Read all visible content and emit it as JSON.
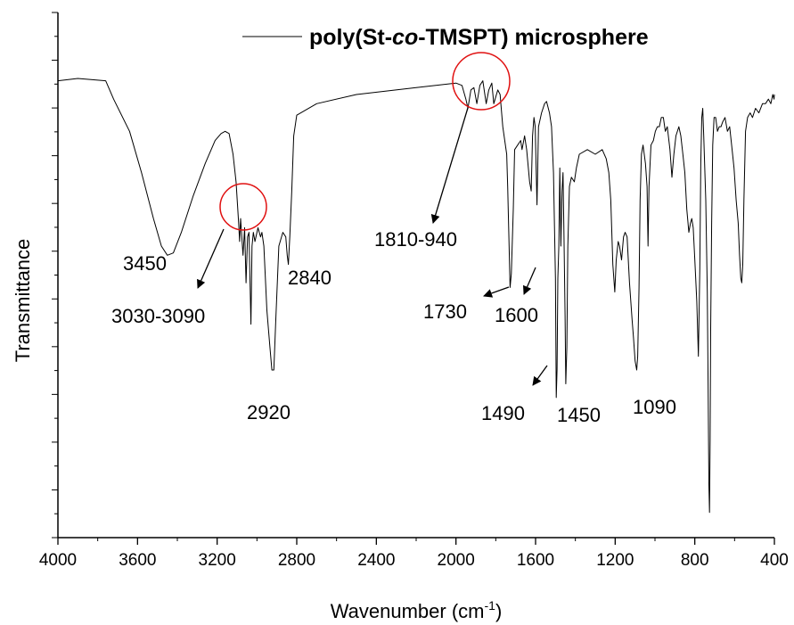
{
  "chart_data": {
    "type": "line",
    "xlabel": "Wavenumber (cm",
    "xlabel_sup": "-1",
    "xlabel_close": ")",
    "ylabel": "Transmittance",
    "xlim": [
      4000,
      400
    ],
    "x_reversed": true,
    "ylim": [
      0,
      100
    ],
    "y_tick_labels_shown": false,
    "grid": false,
    "x_ticks": [
      4000,
      3600,
      3200,
      2800,
      2400,
      2000,
      1600,
      1200,
      800,
      400
    ],
    "legend": {
      "position": "top-right",
      "prefix": "poly(St-",
      "italic": "co",
      "suffix": "-TMSPT) microsphere"
    },
    "series": [
      {
        "name": "poly(St-co-TMSPT) microsphere",
        "color": "#000000",
        "points": [
          [
            4000,
            96
          ],
          [
            3900,
            96.5
          ],
          [
            3760,
            96
          ],
          [
            3720,
            92
          ],
          [
            3640,
            85
          ],
          [
            3580,
            76
          ],
          [
            3520,
            66
          ],
          [
            3480,
            60
          ],
          [
            3450,
            58
          ],
          [
            3420,
            58.5
          ],
          [
            3380,
            63
          ],
          [
            3320,
            71
          ],
          [
            3260,
            78
          ],
          [
            3210,
            83
          ],
          [
            3180,
            84.5
          ],
          [
            3160,
            85
          ],
          [
            3140,
            84.5
          ],
          [
            3120,
            80
          ],
          [
            3105,
            74
          ],
          [
            3092,
            65
          ],
          [
            3087,
            61
          ],
          [
            3082,
            66
          ],
          [
            3070,
            58
          ],
          [
            3062,
            64
          ],
          [
            3055,
            52
          ],
          [
            3047,
            62
          ],
          [
            3040,
            63
          ],
          [
            3030,
            43
          ],
          [
            3025,
            60
          ],
          [
            3018,
            63
          ],
          [
            3010,
            61
          ],
          [
            2995,
            64
          ],
          [
            2982,
            62
          ],
          [
            2975,
            63
          ],
          [
            2965,
            60
          ],
          [
            2950,
            46
          ],
          [
            2935,
            38
          ],
          [
            2925,
            33
          ],
          [
            2915,
            33
          ],
          [
            2905,
            44
          ],
          [
            2890,
            60
          ],
          [
            2870,
            63
          ],
          [
            2855,
            62
          ],
          [
            2848,
            58
          ],
          [
            2842,
            56
          ],
          [
            2835,
            62
          ],
          [
            2825,
            72
          ],
          [
            2815,
            84
          ],
          [
            2800,
            88.5
          ],
          [
            2700,
            91
          ],
          [
            2500,
            93
          ],
          [
            2200,
            94.5
          ],
          [
            2000,
            95.5
          ],
          [
            1970,
            95
          ],
          [
            1950,
            92
          ],
          [
            1940,
            90
          ],
          [
            1925,
            94
          ],
          [
            1910,
            94.5
          ],
          [
            1895,
            91
          ],
          [
            1880,
            95
          ],
          [
            1865,
            96
          ],
          [
            1848,
            91
          ],
          [
            1835,
            94
          ],
          [
            1820,
            95.5
          ],
          [
            1810,
            91
          ],
          [
            1790,
            94
          ],
          [
            1778,
            93
          ],
          [
            1765,
            86
          ],
          [
            1745,
            80
          ],
          [
            1740,
            73
          ],
          [
            1733,
            60
          ],
          [
            1728,
            51
          ],
          [
            1722,
            54
          ],
          [
            1712,
            68
          ],
          [
            1705,
            81
          ],
          [
            1690,
            82
          ],
          [
            1675,
            83
          ],
          [
            1668,
            81
          ],
          [
            1655,
            84
          ],
          [
            1645,
            81
          ],
          [
            1630,
            74
          ],
          [
            1622,
            72
          ],
          [
            1615,
            84
          ],
          [
            1608,
            88
          ],
          [
            1602,
            86
          ],
          [
            1598,
            79
          ],
          [
            1593,
            69
          ],
          [
            1585,
            86
          ],
          [
            1570,
            89
          ],
          [
            1555,
            91
          ],
          [
            1545,
            91.5
          ],
          [
            1530,
            89
          ],
          [
            1520,
            86
          ],
          [
            1510,
            76
          ],
          [
            1500,
            53
          ],
          [
            1496,
            27
          ],
          [
            1492,
            33
          ],
          [
            1488,
            53
          ],
          [
            1483,
            60
          ],
          [
            1478,
            77
          ],
          [
            1473,
            60
          ],
          [
            1467,
            72
          ],
          [
            1462,
            76
          ],
          [
            1457,
            62
          ],
          [
            1452,
            45
          ],
          [
            1448,
            30
          ],
          [
            1443,
            38
          ],
          [
            1438,
            60
          ],
          [
            1430,
            73
          ],
          [
            1420,
            75
          ],
          [
            1405,
            74
          ],
          [
            1395,
            77
          ],
          [
            1380,
            80
          ],
          [
            1340,
            81
          ],
          [
            1300,
            80
          ],
          [
            1265,
            81
          ],
          [
            1245,
            79
          ],
          [
            1232,
            76
          ],
          [
            1222,
            70
          ],
          [
            1212,
            56
          ],
          [
            1202,
            50
          ],
          [
            1195,
            57
          ],
          [
            1185,
            61
          ],
          [
            1178,
            60
          ],
          [
            1168,
            57
          ],
          [
            1158,
            62
          ],
          [
            1150,
            63
          ],
          [
            1140,
            62
          ],
          [
            1128,
            52
          ],
          [
            1115,
            44
          ],
          [
            1108,
            40
          ],
          [
            1100,
            35
          ],
          [
            1092,
            33
          ],
          [
            1087,
            36
          ],
          [
            1080,
            51
          ],
          [
            1075,
            70
          ],
          [
            1068,
            80
          ],
          [
            1060,
            82
          ],
          [
            1048,
            78
          ],
          [
            1040,
            73
          ],
          [
            1035,
            60
          ],
          [
            1030,
            73
          ],
          [
            1020,
            82
          ],
          [
            1008,
            83
          ],
          [
            998,
            85
          ],
          [
            988,
            86
          ],
          [
            978,
            86
          ],
          [
            968,
            88
          ],
          [
            958,
            88
          ],
          [
            948,
            85
          ],
          [
            938,
            86
          ],
          [
            925,
            81
          ],
          [
            915,
            75
          ],
          [
            905,
            80
          ],
          [
            895,
            84
          ],
          [
            880,
            86
          ],
          [
            870,
            84
          ],
          [
            860,
            80
          ],
          [
            850,
            76
          ],
          [
            840,
            68
          ],
          [
            830,
            63
          ],
          [
            822,
            65
          ],
          [
            815,
            66
          ],
          [
            808,
            64
          ],
          [
            800,
            57
          ],
          [
            790,
            48
          ],
          [
            782,
            36
          ],
          [
            775,
            55
          ],
          [
            770,
            78
          ],
          [
            765,
            88
          ],
          [
            760,
            90
          ],
          [
            755,
            84
          ],
          [
            745,
            70
          ],
          [
            737,
            50
          ],
          [
            733,
            30
          ],
          [
            729,
            8
          ],
          [
            726,
            2
          ],
          [
            723,
            18
          ],
          [
            720,
            42
          ],
          [
            715,
            65
          ],
          [
            710,
            82
          ],
          [
            703,
            88
          ],
          [
            695,
            88
          ],
          [
            686,
            85
          ],
          [
            677,
            86
          ],
          [
            668,
            86
          ],
          [
            660,
            87
          ],
          [
            648,
            88
          ],
          [
            636,
            85
          ],
          [
            625,
            86
          ],
          [
            615,
            82
          ],
          [
            603,
            77
          ],
          [
            592,
            70
          ],
          [
            582,
            65
          ],
          [
            575,
            58
          ],
          [
            569,
            53
          ],
          [
            564,
            52
          ],
          [
            559,
            56
          ],
          [
            553,
            70
          ],
          [
            545,
            85
          ],
          [
            535,
            88
          ],
          [
            522,
            89
          ],
          [
            510,
            88
          ],
          [
            495,
            90
          ],
          [
            478,
            89
          ],
          [
            460,
            91
          ],
          [
            445,
            91
          ],
          [
            430,
            92
          ],
          [
            418,
            91
          ],
          [
            408,
            93
          ],
          [
            402,
            92
          ],
          [
            400,
            93
          ]
        ]
      }
    ],
    "annotations": [
      {
        "text": "3450"
      },
      {
        "text": "3030-3090"
      },
      {
        "text": "2840"
      },
      {
        "text": "2920"
      },
      {
        "text": "1810-940"
      },
      {
        "text": "1730"
      },
      {
        "text": "1600"
      },
      {
        "text": "1490"
      },
      {
        "text": "1450"
      },
      {
        "text": "1090"
      }
    ],
    "highlight_color": "#e01010"
  }
}
